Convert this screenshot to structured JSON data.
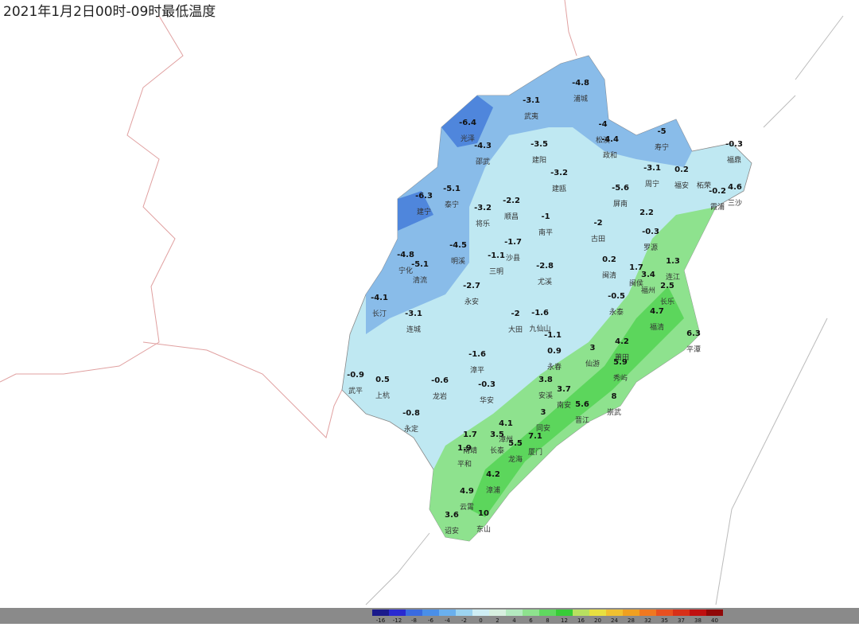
{
  "header": {
    "title": "2021年1月2日00时-09时最低温度"
  },
  "stations": [
    {
      "name": "浦城",
      "value": -4.8
    },
    {
      "name": "武夷",
      "value": -3.1
    },
    {
      "name": "光泽",
      "value": -6.4
    },
    {
      "name": "邵武",
      "value": -4.3
    },
    {
      "name": "松溪",
      "value": -4
    },
    {
      "name": "政和",
      "value": -4.4
    },
    {
      "name": "寿宁",
      "value": -5
    },
    {
      "name": "建阳",
      "value": -3.5
    },
    {
      "name": "福鼎",
      "value": -0.3
    },
    {
      "name": "周宁",
      "value": -3.1
    },
    {
      "name": "福安",
      "value": 0.2
    },
    {
      "name": "柘荣"
    },
    {
      "name": "建瓯",
      "value": -3.2
    },
    {
      "name": "泰宁",
      "value": -5.1
    },
    {
      "name": "建宁",
      "value": -6.3
    },
    {
      "name": "屏南",
      "value": -5.6
    },
    {
      "name": "霞浦",
      "value": -0.2
    },
    {
      "name": "三沙",
      "value": 4.6
    },
    {
      "name": "将乐",
      "value": -3.2
    },
    {
      "name": "顺昌",
      "value": -2.2
    },
    {
      "name": "南平",
      "value": -1
    },
    {
      "name": "古田",
      "value": -2
    },
    {
      "value": 2.2
    },
    {
      "name": "罗源",
      "value": -0.3
    },
    {
      "name": "明溪",
      "value": -4.5
    },
    {
      "name": "沙县",
      "value": -1.7
    },
    {
      "name": "三明",
      "value": -1.1
    },
    {
      "name": "宁化",
      "value": -4.8
    },
    {
      "name": "清流",
      "value": -5.1
    },
    {
      "name": "尤溪",
      "value": -2.8
    },
    {
      "name": "闽清",
      "value": 0.2
    },
    {
      "name": "连江",
      "value": 1.3
    },
    {
      "name": "闽侯",
      "value": 1.7
    },
    {
      "name": "福州",
      "value": 3.4
    },
    {
      "name": "长乐",
      "value": 2.5
    },
    {
      "name": "永安",
      "value": -2.7
    },
    {
      "name": "长汀",
      "value": -4.1
    },
    {
      "name": "连城",
      "value": -3.1
    },
    {
      "name": "永泰",
      "value": -0.5
    },
    {
      "name": "大田",
      "value": -2
    },
    {
      "name": "九仙山",
      "value": -1.6
    },
    {
      "name": "福清",
      "value": 4.7
    },
    {
      "name": "平潭",
      "value": 6.3
    },
    {
      "value": -1.1
    },
    {
      "value": 0.9
    },
    {
      "name": "漳平",
      "value": -1.6
    },
    {
      "name": "莆田",
      "value": 4.2
    },
    {
      "name": "仙游",
      "value": 3
    },
    {
      "name": "秀屿",
      "value": 5.9
    },
    {
      "name": "永春"
    },
    {
      "name": "武平",
      "value": -0.9
    },
    {
      "name": "上杭",
      "value": 0.5
    },
    {
      "name": "龙岩",
      "value": -0.6
    },
    {
      "name": "华安",
      "value": -0.3
    },
    {
      "name": "安溪",
      "value": 3.8
    },
    {
      "name": "南安",
      "value": 3.7
    },
    {
      "name": "晋江",
      "value": 5.6
    },
    {
      "name": "崇武",
      "value": 8
    },
    {
      "name": "永定",
      "value": -0.8
    },
    {
      "name": "同安",
      "value": 3
    },
    {
      "name": "长泰",
      "value": 3.5
    },
    {
      "name": "漳州",
      "value": 4.1
    },
    {
      "name": "厦门",
      "value": 7.1
    },
    {
      "name": "龙海",
      "value": 5.5
    },
    {
      "name": "南靖",
      "value": 1.7
    },
    {
      "name": "平和",
      "value": 1.9
    },
    {
      "name": "漳浦",
      "value": 4.2
    },
    {
      "name": "云霄",
      "value": 4.9
    },
    {
      "name": "诏安",
      "value": 3.6
    },
    {
      "name": "东山",
      "value": 10
    }
  ],
  "legend": {
    "values": [
      -16,
      -12,
      -8,
      -6,
      -4,
      -2,
      0,
      2,
      4,
      6,
      8,
      12,
      16,
      20,
      24,
      28,
      32,
      35,
      37,
      38,
      40
    ],
    "colors": [
      "#1a1a8c",
      "#2a2ad0",
      "#3a6be0",
      "#4a8fe8",
      "#6ab0ee",
      "#9dd4f0",
      "#cfeef5",
      "#d8f0e0",
      "#b4eac0",
      "#8ee28e",
      "#60d860",
      "#38cc38",
      "#b8e060",
      "#e8e040",
      "#f0c030",
      "#f0a020",
      "#f07820",
      "#e85020",
      "#d83018",
      "#c01010",
      "#900808"
    ]
  }
}
